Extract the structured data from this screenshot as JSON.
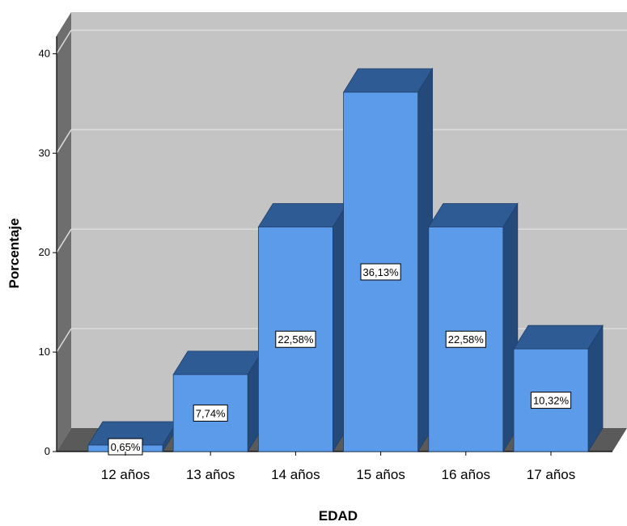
{
  "chart_data": {
    "type": "bar",
    "categories": [
      "12 años",
      "13 años",
      "14 años",
      "15 años",
      "16 años",
      "17 años"
    ],
    "values": [
      0.65,
      7.74,
      22.58,
      36.13,
      22.58,
      10.32
    ],
    "data_labels": [
      "0,65%",
      "7,74%",
      "22,58%",
      "36,13%",
      "22,58%",
      "10,32%"
    ],
    "xlabel": "EDAD",
    "ylabel": "Porcentaje",
    "yticks": [
      "0",
      "10",
      "20",
      "30",
      "40"
    ],
    "ylim": [
      0,
      44
    ],
    "grid": true,
    "style_3d": true,
    "colors": {
      "bar_front": "#5b9bea",
      "bar_top": "#2f5b95",
      "bar_side": "#244a7c",
      "bar_edge": "#1f3f6a",
      "plot_back": "#c4c4c4",
      "plot_wall": "#6e6e6e",
      "plot_floor": "#5a5a5a",
      "gridline": "#dcdcdc"
    }
  }
}
